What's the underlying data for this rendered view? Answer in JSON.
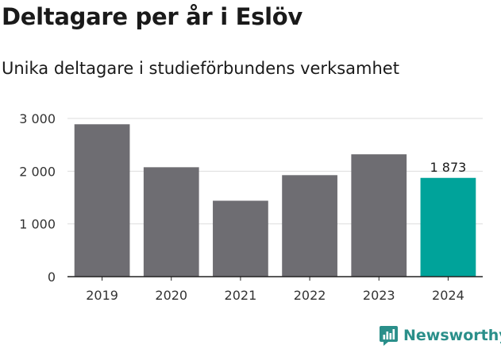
{
  "chart_data": {
    "type": "bar",
    "title": "Deltagare per år i Eslöv",
    "subtitle": "Unika deltagare i studieförbundens verksamhet",
    "categories": [
      "2019",
      "2020",
      "2021",
      "2022",
      "2023",
      "2024"
    ],
    "values": [
      2890,
      2075,
      1440,
      1925,
      2320,
      1873
    ],
    "highlight_index": 5,
    "data_labels": {
      "5": "1 873"
    },
    "ylim": [
      0,
      3000
    ],
    "yticks": [
      0,
      1000,
      2000,
      3000
    ],
    "ytick_labels": [
      "0",
      "1 000",
      "2 000",
      "3 000"
    ],
    "grid": true,
    "legend": "none",
    "colors": {
      "bar": "#6e6d72",
      "highlight": "#00a39a",
      "grid": "#dddddd",
      "axis": "#222222"
    }
  },
  "footer": {
    "brand": "Newsworthy",
    "brand_color": "#2a8f8a",
    "icon": "newsworthy-logo-icon"
  }
}
